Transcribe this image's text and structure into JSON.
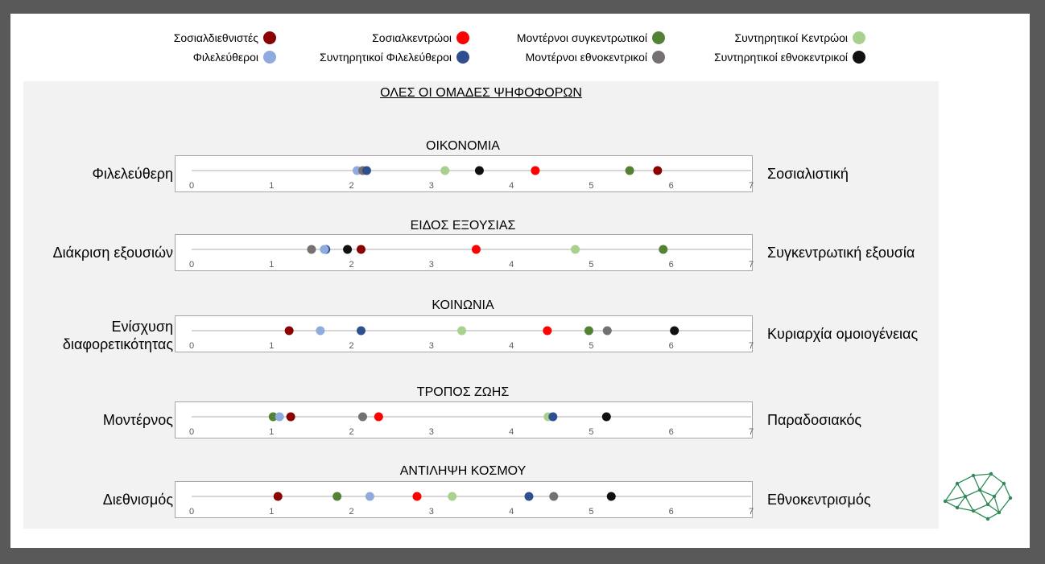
{
  "colors": {
    "Σοσιαλδιεθνιστές": "#8b0000",
    "Σοσιαλκεντρώοι": "#ff0000",
    "Μοντέρνοι συγκεντρωτικοί": "#548235",
    "Συντηρητικοί Κεντρώοι": "#a9d18e",
    "Φιλελεύθεροι": "#8faadc",
    "Συντηρητικοί Φιλελεύθεροι": "#2f4f8f",
    "Μοντέρνοι εθνοκεντρικοί": "#767171",
    "Συντηρητικοί εθνοκεντρικοί": "#111111"
  },
  "legend": [
    {
      "label": "Σοσιαλδιεθνιστές",
      "color": "#8b0000"
    },
    {
      "label": "Σοσιαλκεντρώοι",
      "color": "#ff0000"
    },
    {
      "label": "Μοντέρνοι συγκεντρωτικοί",
      "color": "#548235"
    },
    {
      "label": "Συντηρητικοί Κεντρώοι",
      "color": "#a9d18e"
    },
    {
      "label": "Φιλελεύθεροι",
      "color": "#8faadc"
    },
    {
      "label": "Συντηρητικοί Φιλελεύθεροι",
      "color": "#2f4f8f"
    },
    {
      "label": "Μοντέρνοι εθνοκεντρικοί",
      "color": "#767171"
    },
    {
      "label": "Συντηρητικοί εθνοκεντρικοί",
      "color": "#111111"
    }
  ],
  "main_title": "ΟΛΕΣ ΟΙ ΟΜΑΔΕΣ ΨΗΦΟΦΟΡΩΝ",
  "chart_data": [
    {
      "type": "scatter",
      "title": "ΟΙΚΟΝΟΜΙΑ",
      "left_label": "Φιλελεύθερη",
      "right_label": "Σοσιαλιστική",
      "xlim": [
        0,
        7
      ],
      "ticks": [
        "0",
        "1",
        "2",
        "3",
        "4",
        "5",
        "6",
        "7"
      ],
      "points": [
        {
          "series": "Σοσιαλδιεθνιστές",
          "x": 5.83
        },
        {
          "series": "Σοσιαλκεντρώοι",
          "x": 4.3
        },
        {
          "series": "Μοντέρνοι συγκεντρωτικοί",
          "x": 5.48
        },
        {
          "series": "Συντηρητικοί Κεντρώοι",
          "x": 3.17
        },
        {
          "series": "Φιλελεύθεροι",
          "x": 2.07
        },
        {
          "series": "Μοντέρνοι εθνοκεντρικοί",
          "x": 2.14
        },
        {
          "series": "Συντηρητικοί Φιλελεύθεροι",
          "x": 2.19
        },
        {
          "series": "Συντηρητικοί εθνοκεντρικοί",
          "x": 3.6
        }
      ]
    },
    {
      "type": "scatter",
      "title": "ΕΙΔΟΣ ΕΞΟΥΣΙΑΣ",
      "left_label": "Διάκριση εξουσιών",
      "right_label": "Συγκεντρωτική εξουσία",
      "xlim": [
        0,
        7
      ],
      "ticks": [
        "0",
        "1",
        "2",
        "3",
        "4",
        "5",
        "6",
        "7"
      ],
      "points": [
        {
          "series": "Σοσιαλδιεθνιστές",
          "x": 2.12
        },
        {
          "series": "Σοσιαλκεντρώοι",
          "x": 3.56
        },
        {
          "series": "Μοντέρνοι συγκεντρωτικοί",
          "x": 5.9
        },
        {
          "series": "Συντηρητικοί Κεντρώοι",
          "x": 4.8
        },
        {
          "series": "Μοντέρνοι εθνοκεντρικοί",
          "x": 1.5
        },
        {
          "series": "Συντηρητικοί Φιλελεύθεροι",
          "x": 1.68
        },
        {
          "series": "Φιλελεύθεροι",
          "x": 1.66
        },
        {
          "series": "Συντηρητικοί εθνοκεντρικοί",
          "x": 1.95
        }
      ]
    },
    {
      "type": "scatter",
      "title": "ΚΟΙΝΩΝΙΑ",
      "left_label": "Ενίσχυση\nδιαφορετικότητας",
      "right_label": "Κυριαρχία ομοιογένειας",
      "xlim": [
        0,
        7
      ],
      "ticks": [
        "0",
        "1",
        "2",
        "3",
        "4",
        "5",
        "6",
        "7"
      ],
      "points": [
        {
          "series": "Σοσιαλδιεθνιστές",
          "x": 1.22
        },
        {
          "series": "Φιλελεύθεροι",
          "x": 1.61
        },
        {
          "series": "Συντηρητικοί Φιλελεύθεροι",
          "x": 2.12
        },
        {
          "series": "Συντηρητικοί Κεντρώοι",
          "x": 3.38
        },
        {
          "series": "Σοσιαλκεντρώοι",
          "x": 4.45
        },
        {
          "series": "Μοντέρνοι συγκεντρωτικοί",
          "x": 4.97
        },
        {
          "series": "Μοντέρνοι εθνοκεντρικοί",
          "x": 5.2
        },
        {
          "series": "Συντηρητικοί εθνοκεντρικοί",
          "x": 6.04
        }
      ]
    },
    {
      "type": "scatter",
      "title": "ΤΡΟΠΟΣ ΖΩΗΣ",
      "left_label": "Μοντέρνος",
      "right_label": "Παραδοσιακός",
      "xlim": [
        0,
        7
      ],
      "ticks": [
        "0",
        "1",
        "2",
        "3",
        "4",
        "5",
        "6",
        "7"
      ],
      "points": [
        {
          "series": "Μοντέρνοι συγκεντρωτικοί",
          "x": 1.02
        },
        {
          "series": "Φιλελεύθεροι",
          "x": 1.1
        },
        {
          "series": "Σοσιαλδιεθνιστές",
          "x": 1.24
        },
        {
          "series": "Μοντέρνοι εθνοκεντρικοί",
          "x": 2.14
        },
        {
          "series": "Σοσιαλκεντρώοι",
          "x": 2.34
        },
        {
          "series": "Συντηρητικοί Κεντρώοι",
          "x": 4.46
        },
        {
          "series": "Συντηρητικοί Φιλελεύθεροι",
          "x": 4.52
        },
        {
          "series": "Συντηρητικοί εθνοκεντρικοί",
          "x": 5.19
        }
      ]
    },
    {
      "type": "scatter",
      "title": "ΑΝΤΙΛΗΨΗ ΚΟΣΜΟΥ",
      "left_label": "Διεθνισμός",
      "right_label": "Εθνοκεντρισμός",
      "xlim": [
        0,
        7
      ],
      "ticks": [
        "0",
        "1",
        "2",
        "3",
        "4",
        "5",
        "6",
        "7"
      ],
      "points": [
        {
          "series": "Σοσιαλδιεθνιστές",
          "x": 1.08
        },
        {
          "series": "Μοντέρνοι συγκεντρωτικοί",
          "x": 1.82
        },
        {
          "series": "Φιλελεύθεροι",
          "x": 2.23
        },
        {
          "series": "Σοσιαλκεντρώοι",
          "x": 2.82
        },
        {
          "series": "Συντηρητικοί Κεντρώοι",
          "x": 3.26
        },
        {
          "series": "Συντηρητικοί Φιλελεύθεροι",
          "x": 4.22
        },
        {
          "series": "Μοντέρνοι εθνοκεντρικοί",
          "x": 4.53
        },
        {
          "series": "Συντηρητικοί εθνοκεντρικοί",
          "x": 5.25
        }
      ]
    }
  ]
}
